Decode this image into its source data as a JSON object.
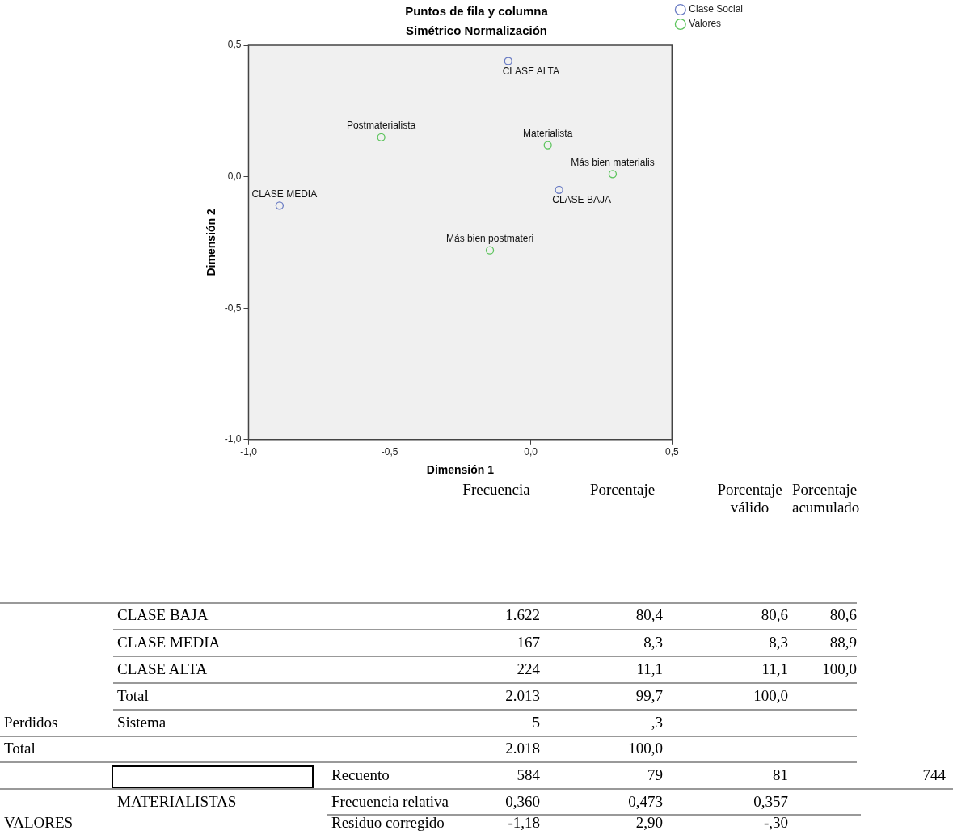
{
  "chart_data": [
    {
      "type": "scatter",
      "title": "Puntos de fila y columna",
      "subtitle": "Simétrico Normalización",
      "xlabel": "Dimensión 1",
      "ylabel": "Dimensión 2",
      "series": [
        {
          "name": "Clase Social",
          "color": "#6a7cc4",
          "x": [
            -0.08,
            -0.89,
            0.1
          ],
          "values": [
            0.44,
            -0.11,
            -0.05
          ]
        },
        {
          "name": "Valores",
          "color": "#5cc45c",
          "x": [
            -0.53,
            0.06,
            0.29,
            -0.145
          ],
          "values": [
            0.15,
            0.12,
            0.01,
            -0.28
          ]
        }
      ],
      "xlim": [
        -1.0,
        0.5
      ],
      "ylim": [
        -1.0,
        0.5
      ],
      "xticks": [
        {
          "value": -1.0,
          "label": "-1,0"
        },
        {
          "value": -0.5,
          "label": "-0,5"
        },
        {
          "value": 0,
          "label": "0,0"
        },
        {
          "value": 0.5,
          "label": "0,5"
        }
      ],
      "yticks": [
        {
          "value": -1.0,
          "label": "-1,0"
        },
        {
          "value": -0.5,
          "label": "-0,5"
        },
        {
          "value": 0,
          "label": "0,0"
        },
        {
          "value": 0.5,
          "label": "0,5"
        }
      ],
      "legend": "top right",
      "marker": "circle",
      "annotations": [
        {
          "text": "CLASE ALTA",
          "x": -0.08,
          "y": 0.44
        },
        {
          "text": "CLASE MEDIA",
          "x": -0.89,
          "y": -0.11
        },
        {
          "text": "CLASE BAJA",
          "x": 0.1,
          "y": -0.05
        },
        {
          "text": "Postmaterialista",
          "x": -0.53,
          "y": 0.15
        },
        {
          "text": "Materialista",
          "x": 0.06,
          "y": 0.12
        },
        {
          "text": "Más bien materialis",
          "x": 0.29,
          "y": 0.01
        },
        {
          "text": "Más bien postmateri",
          "x": -0.145,
          "y": -0.28
        }
      ]
    },
    {
      "type": "other",
      "annotations": [
        "Frecuencia",
        "Porcentaje",
        "Porcentaje válido",
        "Porcentaje acumulado",
        "CLASE BAJA",
        "1.622",
        "80,4",
        "80,6",
        "80,6",
        "CLASE MEDIA",
        "167",
        "8,3",
        "8,3",
        "88,9",
        "CLASE ALTA",
        "224",
        "11,1",
        "11,1",
        "100,0",
        "Total",
        "2.013",
        "99,7",
        "100,0",
        "Perdidos",
        "Sistema",
        "5",
        ",3",
        "Total",
        "2.018",
        "100,0",
        "Recuento",
        "584",
        "79",
        "81",
        "744",
        "MATERIALISTAS",
        "Frecuencia relativa",
        "0,360",
        "0,473",
        "0,357",
        "VALORES",
        "Residuo corregido",
        "-1,18",
        "2,90",
        "-,30"
      ]
    }
  ]
}
